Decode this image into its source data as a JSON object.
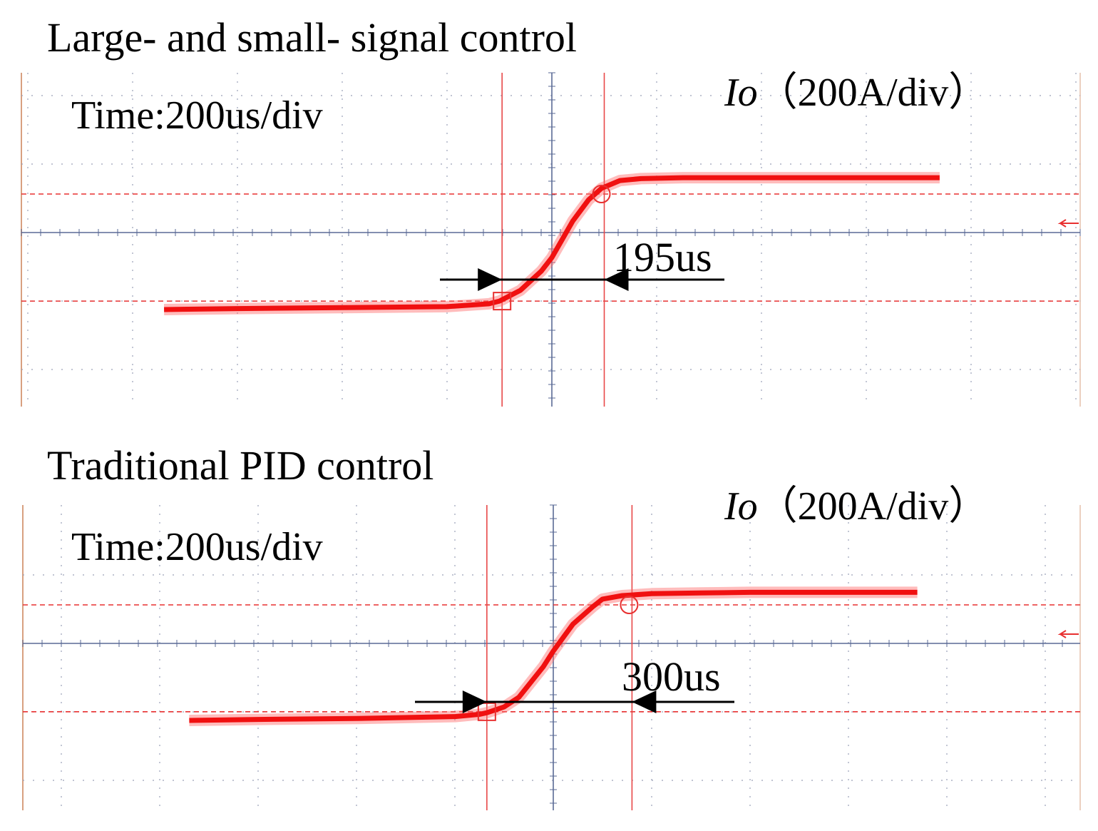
{
  "chart_data": [
    {
      "type": "line",
      "title": "Large- and small- signal control",
      "time_label": "Time:200us/div",
      "channel_label": {
        "symbol": "Io",
        "scale": "（200A/div）"
      },
      "x_unit": "us",
      "y_unit": "A",
      "series": [
        {
          "name": "Io",
          "x": [
            -740,
            -600,
            -400,
            -200,
            -120,
            -100,
            -60,
            -20,
            0,
            40,
            70,
            95,
            130,
            170,
            250,
            400,
            740
          ],
          "y": [
            -400,
            -395,
            -390,
            -385,
            -370,
            -356,
            -300,
            -200,
            -130,
            60,
            170,
            230,
            270,
            280,
            285,
            285,
            285
          ]
        }
      ],
      "markers": {
        "start_x": -95,
        "start_y": -356,
        "end_x": 100,
        "end_y": 200
      },
      "measurement": {
        "label": "195us",
        "value": 195
      },
      "reference_levels": [
        -356,
        200
      ],
      "grid": true
    },
    {
      "type": "line",
      "title": "Traditional PID control",
      "time_label": "Time:200us/div",
      "channel_label": {
        "symbol": "Io",
        "scale": "（200A/div）"
      },
      "x_unit": "us",
      "y_unit": "A",
      "series": [
        {
          "name": "Io",
          "x": [
            -740,
            -600,
            -400,
            -200,
            -150,
            -135,
            -100,
            -70,
            -20,
            0,
            40,
            80,
            100,
            140,
            200,
            300,
            400,
            740
          ],
          "y": [
            -400,
            -395,
            -390,
            -380,
            -368,
            -360,
            -330,
            -280,
            -120,
            -40,
            100,
            190,
            230,
            248,
            258,
            262,
            265,
            265
          ]
        }
      ],
      "markers": {
        "start_x": -135,
        "start_y": -355,
        "end_x": 160,
        "end_y": 200
      },
      "measurement": {
        "label": "300us",
        "value": 300
      },
      "reference_levels": [
        -355,
        200
      ],
      "grid": true
    }
  ]
}
